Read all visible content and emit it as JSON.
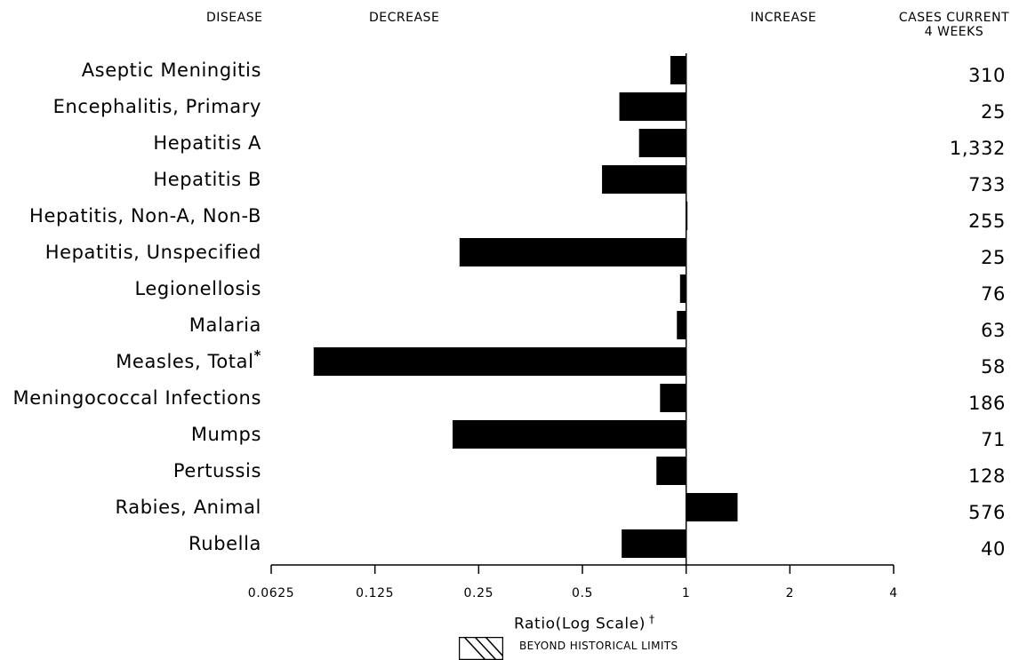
{
  "headers": {
    "disease": "DISEASE",
    "decrease": "DECREASE",
    "increase": "INCREASE",
    "cases_line1": "CASES CURRENT",
    "cases_line2": "4 WEEKS"
  },
  "xaxis_title": "Ratio(Log Scale)",
  "xaxis_title_mark": "†",
  "legend_label": "BEYOND HISTORICAL LIMITS",
  "chart_data": {
    "type": "bar",
    "orientation": "horizontal",
    "scale": "log2",
    "xlim": [
      0.0625,
      4
    ],
    "ticks": [
      0.0625,
      0.125,
      0.25,
      0.5,
      1,
      2,
      4
    ],
    "tick_labels": [
      "0.0625",
      "0.125",
      "0.25",
      "0.5",
      "1",
      "2",
      "4"
    ],
    "reference_line": 1,
    "bar_color": "#000000",
    "categories": [
      "Aseptic Meningitis",
      "Encephalitis, Primary",
      "Hepatitis A",
      "Hepatitis B",
      "Hepatitis, Non-A, Non-B",
      "Hepatitis, Unspecified",
      "Legionellosis",
      "Malaria",
      "Measles, Total",
      "Meningococcal Infections",
      "Mumps",
      "Pertussis",
      "Rabies, Animal",
      "Rubella"
    ],
    "category_marks": [
      "",
      "",
      "",
      "",
      "",
      "",
      "",
      "",
      "*",
      "",
      "",
      "",
      "",
      ""
    ],
    "values": [
      0.9,
      0.64,
      0.73,
      0.57,
      1.0,
      0.22,
      0.96,
      0.94,
      0.083,
      0.84,
      0.21,
      0.82,
      1.41,
      0.65
    ],
    "cases_current_4_weeks": [
      "310",
      "25",
      "1,332",
      "733",
      "255",
      "25",
      "76",
      "63",
      "58",
      "186",
      "71",
      "128",
      "576",
      "40"
    ]
  }
}
